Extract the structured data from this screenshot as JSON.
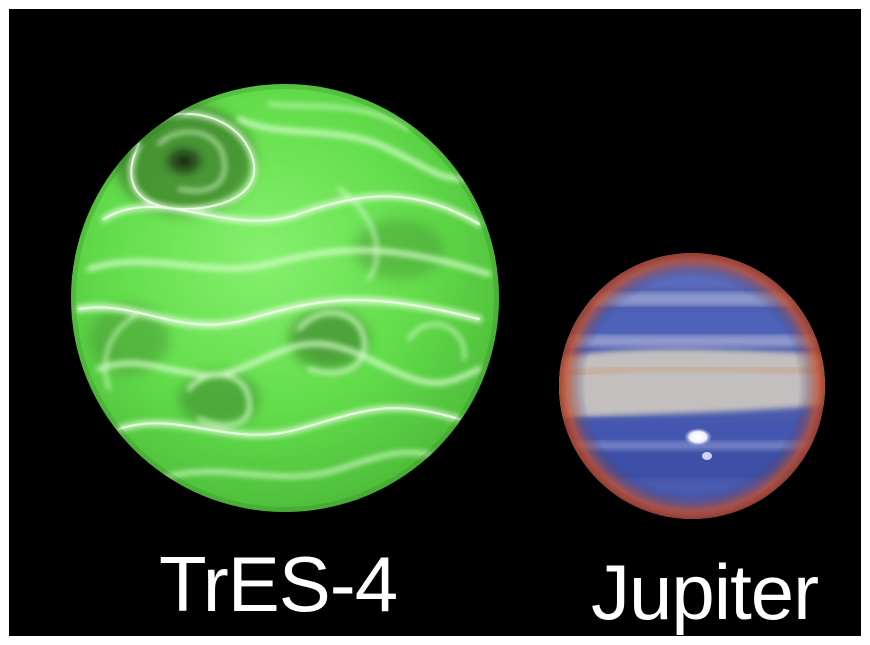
{
  "image": {
    "description_colors": {
      "background": "#000000",
      "border": "#ffffff",
      "tres4_base": "#66e052",
      "tres4_highlight": "#d9ffcf",
      "tres4_dark": "#2a5a1e",
      "jupiter_blue": "#4c5fb3",
      "jupiter_cream": "#e8dcc8",
      "jupiter_rim": "#d2502a"
    }
  },
  "labels": {
    "tres4": "TrES-4",
    "jupiter": "Jupiter"
  },
  "icons": {
    "tres4_planet": "tres4-planet-icon",
    "jupiter_planet": "jupiter-planet-icon"
  }
}
